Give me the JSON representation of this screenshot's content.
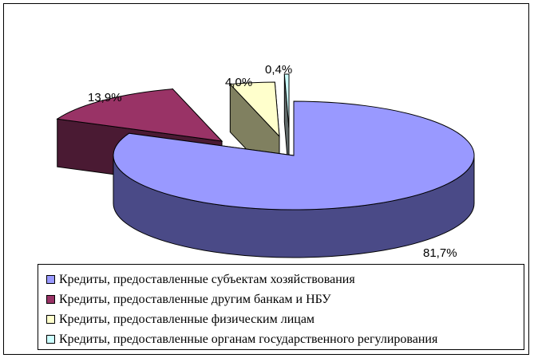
{
  "chart_data": {
    "type": "pie",
    "style": "3d-exploded",
    "slices": [
      {
        "label": "Кредиты, предоставленные субъектам хозяйствования",
        "value": 81.7,
        "value_label": "81,7%",
        "color": "#9999ff",
        "side_color": "#4a4a87"
      },
      {
        "label": "Кредиты, предоставленные другим банкам и НБУ",
        "value": 13.9,
        "value_label": "13,9%",
        "color": "#993366",
        "side_color": "#4a1a33"
      },
      {
        "label": "Кредиты, предоставленные физическим лицам",
        "value": 4.0,
        "value_label": "4,0%",
        "color": "#ffffcc",
        "side_color": "#808060"
      },
      {
        "label": "Кредиты, предоставленные органам государственного регулирования",
        "value": 0.4,
        "value_label": "0,4%",
        "color": "#ccffff",
        "side_color": "#606a6a"
      }
    ],
    "legend_position": "bottom"
  }
}
